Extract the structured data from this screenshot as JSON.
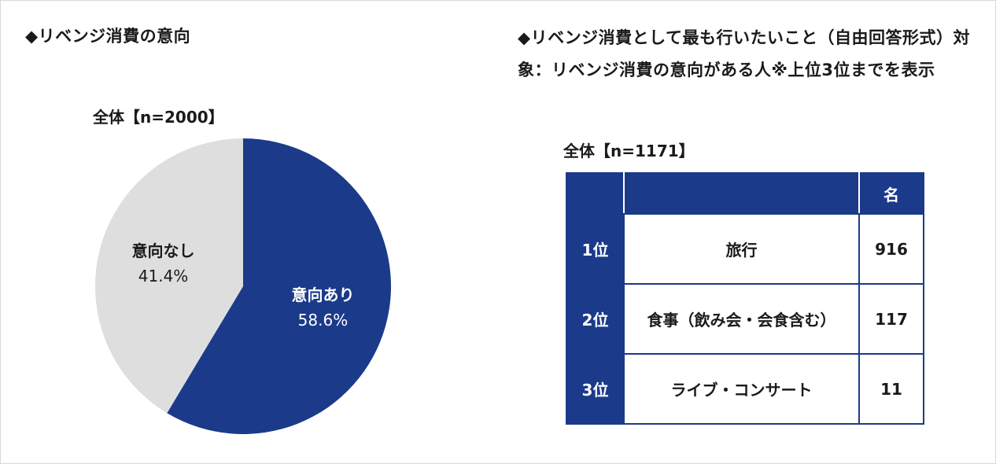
{
  "left_panel": {
    "title": "◆リベンジ消費の意向",
    "total_label": "全体【n=2000】"
  },
  "right_panel": {
    "title": "◆リベンジ消費として最も行いたいこと（自由回答形式）対象：リベンジ消費の意向がある人※上位3位までを表示",
    "total_label": "全体【n=1171】",
    "table": {
      "header_unit": "名",
      "rows": [
        {
          "rank": "1位",
          "item": "旅行",
          "count": "916"
        },
        {
          "rank": "2位",
          "item": "食事（飲み会・会食含む）",
          "count": "117"
        },
        {
          "rank": "3位",
          "item": "ライブ・コンサート",
          "count": "11"
        }
      ]
    }
  },
  "chart_data": [
    {
      "type": "pie",
      "title": "全体【n=2000】",
      "slices": [
        {
          "label": "意向あり",
          "value": 58.6,
          "display": "58.6%",
          "color": "#1b3a8a",
          "text_color": "#ffffff"
        },
        {
          "label": "意向なし",
          "value": 41.4,
          "display": "41.4%",
          "color": "#dedede",
          "text_color": "#1a1a1a"
        }
      ]
    },
    {
      "type": "table",
      "title": "全体【n=1171】",
      "columns": [
        "",
        "",
        "名"
      ],
      "rows": [
        [
          "1位",
          "旅行",
          916
        ],
        [
          "2位",
          "食事（飲み会・会食含む）",
          117
        ],
        [
          "3位",
          "ライブ・コンサート",
          11
        ]
      ]
    }
  ]
}
